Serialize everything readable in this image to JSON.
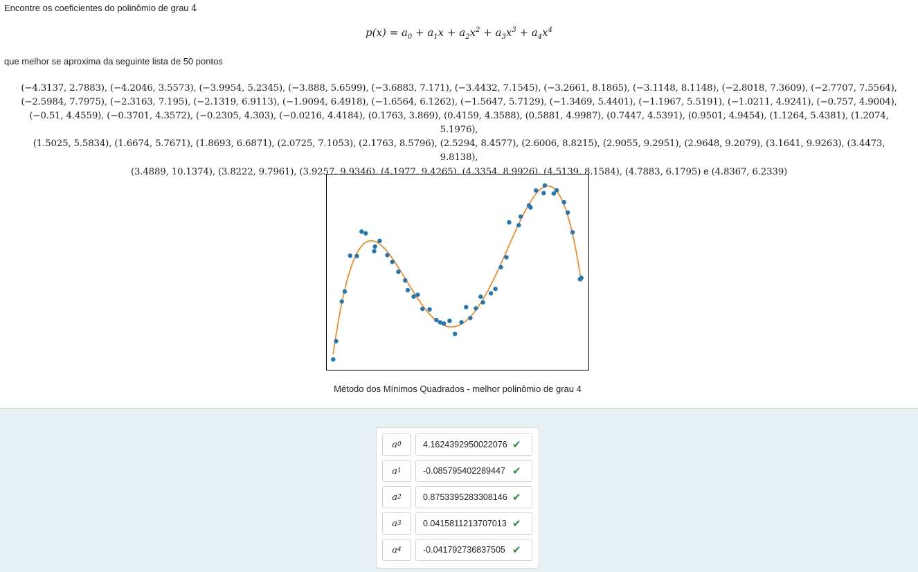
{
  "question": {
    "intro_text": "Encontre os coeficientes do polinômio de grau ",
    "degree": "4",
    "formula_lhs": "p(x) = ",
    "formula_terms": [
      "a",
      "0",
      " + a",
      "1",
      "x + a",
      "2",
      "x",
      "2",
      " + a",
      "3",
      "x",
      "3",
      " + a",
      "4",
      "x",
      "4"
    ],
    "intro2_text": "que melhor se aproxima da seguinte lista de 50 pontos",
    "points_text": [
      "(−4.3137, 2.7883), (−4.2046, 3.5573), (−3.9954, 5.2345), (−3.888, 5.6599), (−3.6883, 7.171), (−3.4432, 7.1545), (−3.2661, 8.1865), (−3.1148, 8.1148), (−2.8018, 7.3609), (−2.7707, 7.5564),",
      "(−2.5984, 7.7975), (−2.3163, 7.195), (−2.1319, 6.9113), (−1.9094, 6.4918), (−1.6564, 6.1262), (−1.5647, 5.7129), (−1.3469, 5.4401), (−1.1967, 5.5191), (−1.0211, 4.9241), (−0.757, 4.9004),",
      "(−0.51, 4.4559), (−0.3701, 4.3572), (−0.2305, 4.303), (−0.0216, 4.4184), (0.1763, 3.869), (0.4159, 4.3588), (0.5881, 4.9987), (0.7447, 4.5391), (0.9501, 4.9454), (1.1264, 5.4381), (1.2074, 5.1976),",
      "(1.5025, 5.5834), (1.6674, 5.7671), (1.8693, 6.6871), (2.0725, 7.1053), (2.1763, 8.5796), (2.5294, 8.4577), (2.6006, 8.8215), (2.9055, 9.2951), (2.9648, 9.2079), (3.1641, 9.9263), (3.4473, 9.8138),",
      "(3.4889, 10.1374), (3.8222, 9.7961), (3.9257, 9.9346), (4.1977, 9.4265), (4.3354, 8.9926), (4.5139, 8.1584), (4.7883, 6.1795) "
    ],
    "points_conjunction": "e",
    "points_last": " (4.8367, 6.2339)"
  },
  "chart_data": {
    "type": "scatter",
    "title": "",
    "caption": "Método dos Mínimos Quadrados - melhor polinômio de grau 4",
    "xlim": [
      -4.55,
      5.1
    ],
    "ylim": [
      2.35,
      10.6
    ],
    "grid": false,
    "points": [
      [
        -4.3137,
        2.7883
      ],
      [
        -4.2046,
        3.5573
      ],
      [
        -3.9954,
        5.2345
      ],
      [
        -3.888,
        5.6599
      ],
      [
        -3.6883,
        7.171
      ],
      [
        -3.4432,
        7.1545
      ],
      [
        -3.2661,
        8.1865
      ],
      [
        -3.1148,
        8.1148
      ],
      [
        -2.8018,
        7.3609
      ],
      [
        -2.7707,
        7.5564
      ],
      [
        -2.5984,
        7.7975
      ],
      [
        -2.3163,
        7.195
      ],
      [
        -2.1319,
        6.9113
      ],
      [
        -1.9094,
        6.4918
      ],
      [
        -1.6564,
        6.1262
      ],
      [
        -1.5647,
        5.7129
      ],
      [
        -1.3469,
        5.4401
      ],
      [
        -1.1967,
        5.5191
      ],
      [
        -1.0211,
        4.9241
      ],
      [
        -0.757,
        4.9004
      ],
      [
        -0.51,
        4.4559
      ],
      [
        -0.3701,
        4.3572
      ],
      [
        -0.2305,
        4.303
      ],
      [
        -0.0216,
        4.4184
      ],
      [
        0.1763,
        3.869
      ],
      [
        0.4159,
        4.3588
      ],
      [
        0.5881,
        4.9987
      ],
      [
        0.7447,
        4.5391
      ],
      [
        0.9501,
        4.9454
      ],
      [
        1.1264,
        5.4381
      ],
      [
        1.2074,
        5.1976
      ],
      [
        1.5025,
        5.5834
      ],
      [
        1.6674,
        5.7671
      ],
      [
        1.8693,
        6.6871
      ],
      [
        2.0725,
        7.1053
      ],
      [
        2.1763,
        8.5796
      ],
      [
        2.5294,
        8.4577
      ],
      [
        2.6006,
        8.8215
      ],
      [
        2.9055,
        9.2951
      ],
      [
        2.9648,
        9.2079
      ],
      [
        3.1641,
        9.9263
      ],
      [
        3.4473,
        9.8138
      ],
      [
        3.4889,
        10.1374
      ],
      [
        3.8222,
        9.7961
      ],
      [
        3.9257,
        9.9346
      ],
      [
        4.1977,
        9.4265
      ],
      [
        4.3354,
        8.9926
      ],
      [
        4.5139,
        8.1584
      ],
      [
        4.7883,
        6.1795
      ],
      [
        4.8367,
        6.2339
      ]
    ],
    "fit_coefficients": [
      4.1624392950022076,
      -0.085795402289447,
      0.8753395283308146,
      0.0415811213707013,
      -0.041792736837505
    ],
    "colors": {
      "points": "#1f77b4",
      "curve": "#ff7f0e"
    }
  },
  "answers": [
    {
      "label": "a",
      "sub": "0",
      "value": "4.1624392950022076",
      "check": "✔"
    },
    {
      "label": "a",
      "sub": "1",
      "value": "-0.085795402289447",
      "check": "✔"
    },
    {
      "label": "a",
      "sub": "2",
      "value": "0.8753395283308146",
      "check": "✔"
    },
    {
      "label": "a",
      "sub": "3",
      "value": "0.0415811213707013",
      "check": "✔"
    },
    {
      "label": "a",
      "sub": "4",
      "value": "-0.041792736837505",
      "check": "✔"
    }
  ]
}
